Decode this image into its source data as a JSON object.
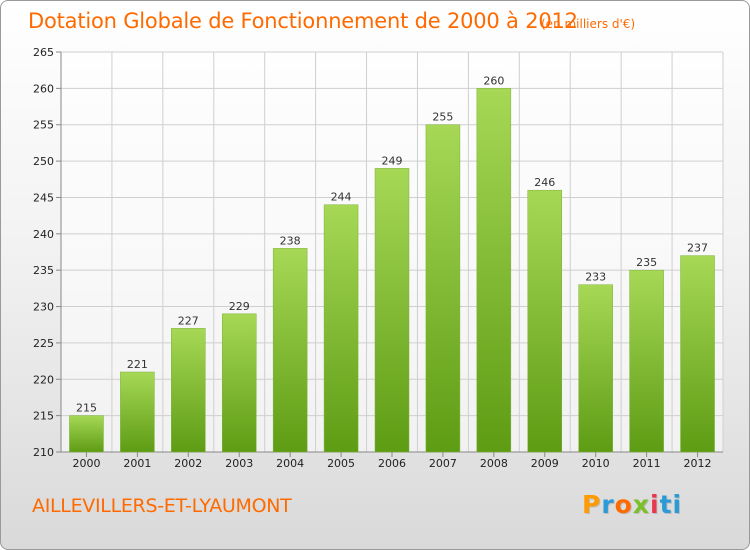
{
  "header": {
    "title": "Dotation Globale de Fonctionnement de 2000 à 2012",
    "unit": "(en milliers d'€)"
  },
  "footer": {
    "commune": "AILLEVILLERS-ET-LYAUMONT",
    "logo_text": "Proxiti"
  },
  "colors": {
    "title": "#ff6a00",
    "bar_top": "#a6d856",
    "bar_bottom": "#5e9c14",
    "grid": "#cfcfcf"
  },
  "chart_data": {
    "type": "bar",
    "categories": [
      "2000",
      "2001",
      "2002",
      "2003",
      "2004",
      "2005",
      "2006",
      "2007",
      "2008",
      "2009",
      "2010",
      "2011",
      "2012"
    ],
    "values": [
      215,
      221,
      227,
      229,
      238,
      244,
      249,
      255,
      260,
      246,
      233,
      235,
      237
    ],
    "title": "Dotation Globale de Fonctionnement de 2000 à 2012",
    "subtitle": "(en milliers d'€)",
    "ylim": [
      210,
      265
    ],
    "yticks": [
      210,
      215,
      220,
      225,
      230,
      235,
      240,
      245,
      250,
      255,
      260,
      265
    ],
    "grid": true,
    "data_labels": true
  }
}
